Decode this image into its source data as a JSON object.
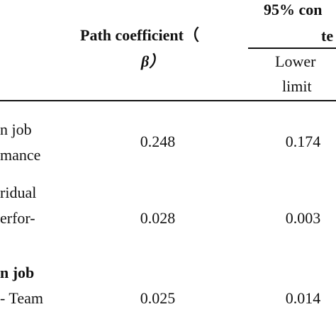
{
  "table": {
    "header": {
      "path_coefficient": "Path coefficient（",
      "path_coefficient_symbol": "β）",
      "ci_title": "95% con",
      "ci_title_line2": "te",
      "lower": "Lower",
      "lower_line2": "limit"
    },
    "rows": [
      {
        "label": [
          "n job",
          "mance"
        ],
        "coefficient": 0.248,
        "lower": 0.174
      },
      {
        "label": [
          "ridual",
          "erfor-"
        ],
        "coefficient": 0.028,
        "lower": 0.003
      },
      {
        "label": [
          "n job",
          "- Team"
        ],
        "coefficient": 0.025,
        "lower": 0.014
      }
    ]
  }
}
